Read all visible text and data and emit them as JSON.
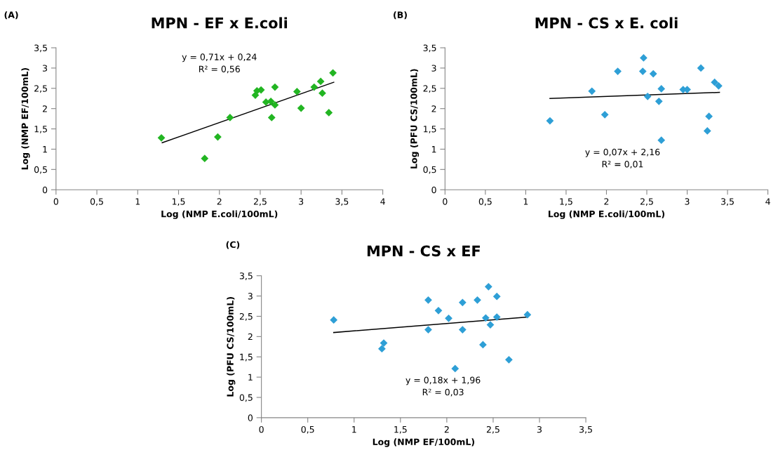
{
  "chart_data": [
    {
      "type": "scatter",
      "title": "MPN - EF x E.coli",
      "xlabel": "Log (NMP E.coli/100mL)",
      "ylabel": "Log (NMP EF/100mL)",
      "grid": false,
      "annotations": [
        "(A)",
        "y = 0,71x + 0,24",
        "R² = 0,56"
      ],
      "xlim": [
        0,
        4
      ],
      "ylim": [
        0,
        3.5
      ],
      "xticks": [
        0,
        {
          "value": 0.5,
          "label": "0,5"
        },
        1,
        {
          "value": 1.5,
          "label": "1,5"
        },
        2,
        {
          "value": 2.5,
          "label": "2,5"
        },
        3,
        {
          "value": 3.5,
          "label": "3,5"
        },
        4
      ],
      "yticks": [
        0,
        {
          "value": 0.5,
          "label": "0,5"
        },
        1,
        {
          "value": 1.5,
          "label": "1,5"
        },
        2,
        {
          "value": 2.5,
          "label": "2,5"
        },
        3,
        {
          "value": 3.5,
          "label": "3,5"
        }
      ],
      "series": [
        {
          "color": "#22b522",
          "marker": "diamond",
          "x": [
            1.29,
            1.82,
            1.98,
            2.13,
            2.44,
            2.46,
            2.51,
            2.57,
            2.63,
            2.64,
            2.68,
            2.68,
            2.95,
            3.0,
            3.16,
            3.24,
            3.26,
            3.34,
            3.39
          ],
          "values": [
            1.28,
            0.77,
            1.3,
            1.78,
            2.33,
            2.44,
            2.46,
            2.16,
            2.18,
            1.78,
            2.09,
            2.53,
            2.42,
            2.01,
            2.53,
            2.67,
            2.38,
            1.9,
            2.88
          ]
        },
        {
          "type": "line",
          "color": "#000000",
          "x": [
            1.3,
            3.4
          ],
          "values": [
            1.16,
            2.65
          ]
        }
      ]
    },
    {
      "type": "scatter",
      "title": "MPN - CS x E. coli",
      "xlabel": "Log (NMP E.coli/100mL)",
      "ylabel": "Log (PFU CS/100mL)",
      "grid": false,
      "annotations": [
        "(B)",
        "y = 0,07x + 2,16",
        "R² = 0,01"
      ],
      "xlim": [
        0,
        4
      ],
      "ylim": [
        0,
        3.5
      ],
      "xticks": [
        0,
        {
          "value": 0.5,
          "label": "0,5"
        },
        1,
        {
          "value": 1.5,
          "label": "1,5"
        },
        2,
        {
          "value": 2.5,
          "label": "2,5"
        },
        3,
        {
          "value": 3.5,
          "label": "3,5"
        },
        4
      ],
      "yticks": [
        0,
        {
          "value": 0.5,
          "label": "0,5"
        },
        1,
        {
          "value": 1.5,
          "label": "1,5"
        },
        2,
        {
          "value": 2.5,
          "label": "2,5"
        },
        3,
        {
          "value": 3.5,
          "label": "3,5"
        }
      ],
      "series": [
        {
          "color": "#2e9fd6",
          "marker": "diamond",
          "x": [
            1.3,
            1.82,
            1.98,
            2.14,
            2.45,
            2.46,
            2.51,
            2.58,
            2.65,
            2.68,
            2.68,
            2.95,
            3.0,
            3.17,
            3.25,
            3.27,
            3.34,
            3.39
          ],
          "values": [
            1.7,
            2.43,
            1.85,
            2.92,
            2.92,
            3.25,
            2.3,
            2.86,
            2.18,
            2.49,
            1.22,
            2.47,
            2.47,
            3.0,
            1.45,
            1.81,
            2.65,
            2.56
          ]
        },
        {
          "type": "line",
          "color": "#000000",
          "x": [
            1.3,
            3.4
          ],
          "values": [
            2.25,
            2.4
          ]
        }
      ]
    },
    {
      "type": "scatter",
      "title": "MPN - CS x EF",
      "xlabel": "Log (NMP EF/100mL)",
      "ylabel": "Log (PFU CS/100mL)",
      "grid": false,
      "annotations": [
        "(C)",
        "y = 0,18x + 1,96",
        "R² = 0,03"
      ],
      "xlim": [
        0,
        3.5
      ],
      "ylim": [
        0,
        3.5
      ],
      "xticks": [
        0,
        {
          "value": 0.5,
          "label": "0,5"
        },
        1,
        {
          "value": 1.5,
          "label": "1,5"
        },
        2,
        {
          "value": 2.5,
          "label": "2,5"
        },
        3,
        {
          "value": 3.5,
          "label": "3,5"
        }
      ],
      "yticks": [
        0,
        {
          "value": 0.5,
          "label": "0,5"
        },
        1,
        {
          "value": 1.5,
          "label": "1,5"
        },
        2,
        {
          "value": 2.5,
          "label": "2,5"
        },
        3,
        {
          "value": 3.5,
          "label": "3,5"
        }
      ],
      "series": [
        {
          "color": "#2e9fd6",
          "marker": "diamond",
          "x": [
            0.78,
            1.3,
            1.32,
            1.8,
            1.8,
            1.91,
            2.02,
            2.09,
            2.17,
            2.17,
            2.33,
            2.39,
            2.42,
            2.45,
            2.47,
            2.54,
            2.54,
            2.67,
            2.87
          ],
          "values": [
            2.41,
            1.7,
            1.84,
            2.9,
            2.17,
            2.64,
            2.45,
            1.21,
            2.84,
            2.17,
            2.9,
            1.8,
            2.46,
            3.23,
            2.29,
            2.99,
            2.48,
            1.43,
            2.54
          ]
        },
        {
          "type": "line",
          "color": "#000000",
          "x": [
            0.78,
            2.87
          ],
          "values": [
            2.1,
            2.48
          ]
        }
      ]
    }
  ]
}
